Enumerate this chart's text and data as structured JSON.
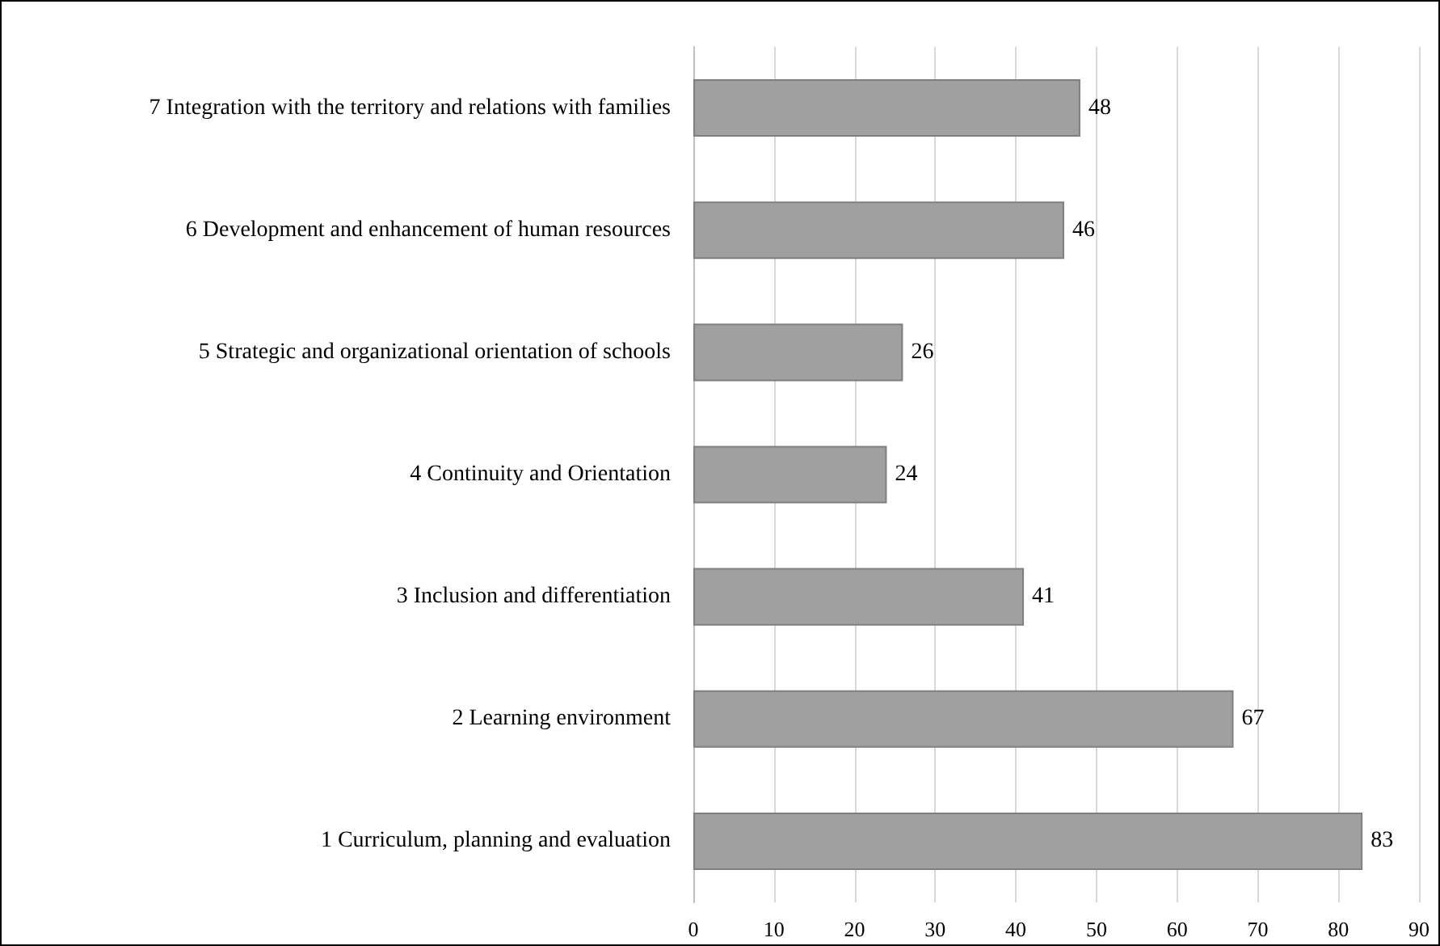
{
  "chart_data": {
    "type": "bar",
    "orientation": "horizontal",
    "categories": [
      "7 Integration with the territory and relations with families",
      "6 Development and enhancement of human resources",
      "5 Strategic and organizational orientation of schools",
      "4 Continuity and Orientation",
      "3 Inclusion and differentiation",
      "2 Learning environment",
      "1 Curriculum, planning and evaluation"
    ],
    "values": [
      48,
      46,
      26,
      24,
      41,
      67,
      83
    ],
    "color": "#a0a0a0",
    "xlim": [
      0,
      90
    ],
    "xticks": [
      0,
      10,
      20,
      30,
      40,
      50,
      60,
      70,
      80,
      90
    ],
    "grid": "x",
    "data_labels": true
  }
}
